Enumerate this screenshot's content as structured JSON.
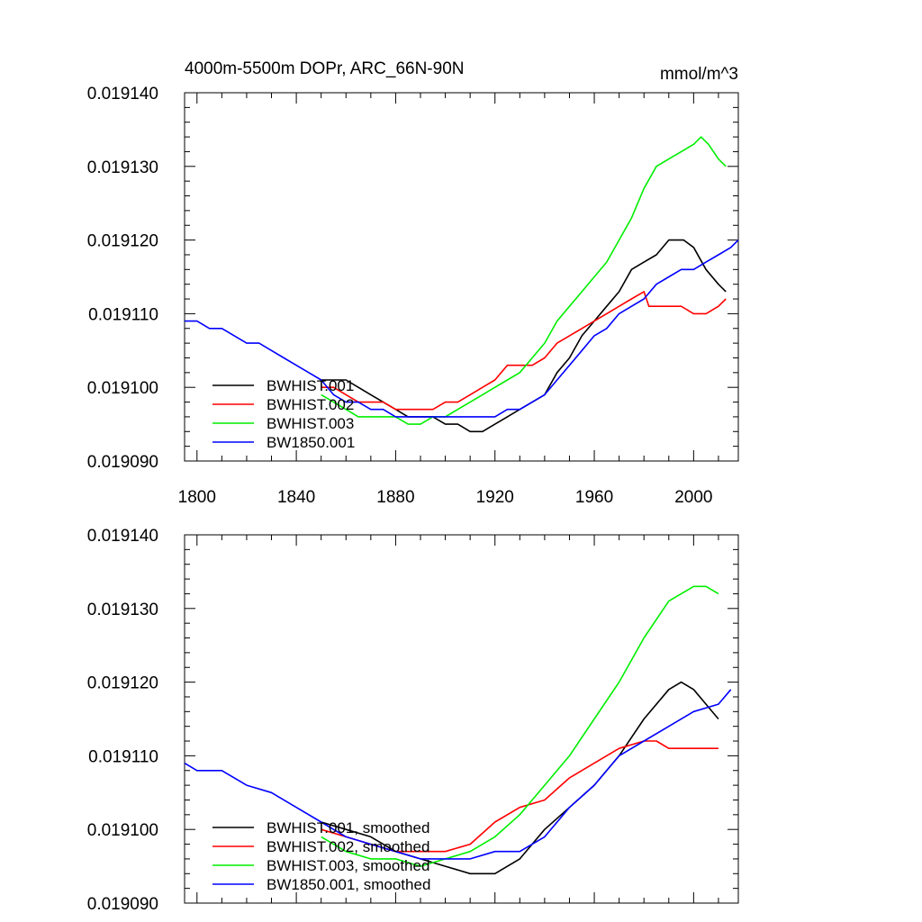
{
  "chart_data": [
    {
      "type": "line",
      "title": "4000m-5500m DOPr, ARC_66N-90N",
      "units": "mmol/m^3",
      "xlim": [
        1795,
        2018
      ],
      "ylim": [
        0.01909,
        0.01914
      ],
      "xticks": [
        1800,
        1840,
        1880,
        1920,
        1960,
        2000
      ],
      "yticks": [
        0.01909,
        0.0191,
        0.01911,
        0.01912,
        0.01913,
        0.01914
      ],
      "ytick_labels": [
        "0.019090",
        "0.019100",
        "0.019110",
        "0.019120",
        "0.019130",
        "0.019140"
      ],
      "grid": false,
      "legend": "bottom-left",
      "series": [
        {
          "name": "BWHIST.001",
          "color": "#000000",
          "x": [
            1850,
            1855,
            1860,
            1865,
            1870,
            1875,
            1880,
            1885,
            1890,
            1895,
            1900,
            1905,
            1910,
            1915,
            1920,
            1925,
            1930,
            1935,
            1940,
            1945,
            1950,
            1955,
            1960,
            1965,
            1970,
            1975,
            1980,
            1985,
            1990,
            1993,
            1996,
            2000,
            2005,
            2010,
            2013
          ],
          "y": [
            0.019101,
            0.019101,
            0.019101,
            0.0191,
            0.019099,
            0.019098,
            0.019097,
            0.019096,
            0.019096,
            0.019096,
            0.019095,
            0.019095,
            0.019094,
            0.019094,
            0.019095,
            0.019096,
            0.019097,
            0.019098,
            0.019099,
            0.019102,
            0.019104,
            0.019107,
            0.019109,
            0.019111,
            0.019113,
            0.019116,
            0.019117,
            0.019118,
            0.01912,
            0.01912,
            0.01912,
            0.019119,
            0.019116,
            0.019114,
            0.019113
          ]
        },
        {
          "name": "BWHIST.002",
          "color": "#ff0000",
          "x": [
            1850,
            1855,
            1860,
            1865,
            1870,
            1875,
            1880,
            1885,
            1890,
            1895,
            1900,
            1905,
            1910,
            1915,
            1920,
            1925,
            1930,
            1935,
            1940,
            1945,
            1950,
            1955,
            1960,
            1965,
            1970,
            1975,
            1980,
            1982,
            1985,
            1990,
            1995,
            2000,
            2005,
            2010,
            2013
          ],
          "y": [
            0.0191,
            0.0191,
            0.019099,
            0.019098,
            0.019098,
            0.019098,
            0.019097,
            0.019097,
            0.019097,
            0.019097,
            0.019098,
            0.019098,
            0.019099,
            0.0191,
            0.019101,
            0.019103,
            0.019103,
            0.019103,
            0.019104,
            0.019106,
            0.019107,
            0.019108,
            0.019109,
            0.01911,
            0.019111,
            0.019112,
            0.019113,
            0.019111,
            0.019111,
            0.019111,
            0.019111,
            0.01911,
            0.01911,
            0.019111,
            0.019112
          ]
        },
        {
          "name": "BWHIST.003",
          "color": "#00ee00",
          "x": [
            1850,
            1855,
            1860,
            1865,
            1870,
            1875,
            1880,
            1885,
            1890,
            1895,
            1900,
            1905,
            1910,
            1915,
            1920,
            1925,
            1930,
            1935,
            1940,
            1945,
            1950,
            1955,
            1960,
            1965,
            1970,
            1975,
            1980,
            1985,
            1990,
            1995,
            2000,
            2003,
            2006,
            2010,
            2013
          ],
          "y": [
            0.019099,
            0.019098,
            0.019097,
            0.019096,
            0.019096,
            0.019096,
            0.019096,
            0.019095,
            0.019095,
            0.019096,
            0.019096,
            0.019097,
            0.019098,
            0.019099,
            0.0191,
            0.019101,
            0.019102,
            0.019104,
            0.019106,
            0.019109,
            0.019111,
            0.019113,
            0.019115,
            0.019117,
            0.01912,
            0.019123,
            0.019127,
            0.01913,
            0.019131,
            0.019132,
            0.019133,
            0.019134,
            0.019133,
            0.019131,
            0.01913
          ]
        },
        {
          "name": "BW1850.001",
          "color": "#0000ff",
          "x": [
            1795,
            1800,
            1805,
            1810,
            1815,
            1820,
            1825,
            1830,
            1835,
            1840,
            1845,
            1850,
            1855,
            1860,
            1865,
            1870,
            1875,
            1880,
            1885,
            1890,
            1895,
            1900,
            1905,
            1910,
            1915,
            1920,
            1925,
            1930,
            1935,
            1940,
            1945,
            1950,
            1955,
            1960,
            1965,
            1970,
            1975,
            1980,
            1985,
            1990,
            1995,
            2000,
            2005,
            2010,
            2015,
            2018
          ],
          "y": [
            0.019109,
            0.019109,
            0.019108,
            0.019108,
            0.019107,
            0.019106,
            0.019106,
            0.019105,
            0.019104,
            0.019103,
            0.019102,
            0.019101,
            0.019099,
            0.019098,
            0.019098,
            0.019097,
            0.019097,
            0.019096,
            0.019096,
            0.019096,
            0.019096,
            0.019096,
            0.019096,
            0.019096,
            0.019096,
            0.019096,
            0.019097,
            0.019097,
            0.019098,
            0.019099,
            0.019101,
            0.019103,
            0.019105,
            0.019107,
            0.019108,
            0.01911,
            0.019111,
            0.019112,
            0.019114,
            0.019115,
            0.019116,
            0.019116,
            0.019117,
            0.019118,
            0.019119,
            0.01912
          ]
        }
      ]
    },
    {
      "type": "line",
      "xlim": [
        1795,
        2018
      ],
      "ylim": [
        0.01909,
        0.01914
      ],
      "xticks": [
        1800,
        1840,
        1880,
        1920,
        1960,
        2000
      ],
      "yticks": [
        0.01909,
        0.0191,
        0.01911,
        0.01912,
        0.01913,
        0.01914
      ],
      "ytick_labels": [
        "0.019090",
        "0.019100",
        "0.019110",
        "0.019120",
        "0.019130",
        "0.019140"
      ],
      "grid": false,
      "legend": "bottom-left",
      "series": [
        {
          "name": "BWHIST.001, smoothed",
          "color": "#000000",
          "x": [
            1850,
            1860,
            1870,
            1880,
            1890,
            1900,
            1910,
            1920,
            1930,
            1940,
            1950,
            1960,
            1970,
            1980,
            1990,
            1995,
            2000,
            2005,
            2010
          ],
          "y": [
            0.019101,
            0.0191,
            0.019099,
            0.019097,
            0.019096,
            0.019095,
            0.019094,
            0.019094,
            0.019096,
            0.0191,
            0.019103,
            0.019106,
            0.01911,
            0.019115,
            0.019119,
            0.01912,
            0.019119,
            0.019117,
            0.019115
          ]
        },
        {
          "name": "BWHIST.002, smoothed",
          "color": "#ff0000",
          "x": [
            1850,
            1860,
            1870,
            1880,
            1890,
            1900,
            1910,
            1920,
            1930,
            1940,
            1950,
            1960,
            1970,
            1980,
            1985,
            1990,
            1995,
            2000,
            2005,
            2010
          ],
          "y": [
            0.0191,
            0.019099,
            0.019098,
            0.019097,
            0.019097,
            0.019097,
            0.019098,
            0.019101,
            0.019103,
            0.019104,
            0.019107,
            0.019109,
            0.019111,
            0.019112,
            0.019112,
            0.019111,
            0.019111,
            0.019111,
            0.019111,
            0.019111
          ]
        },
        {
          "name": "BWHIST.003, smoothed",
          "color": "#00ee00",
          "x": [
            1850,
            1860,
            1870,
            1880,
            1890,
            1900,
            1910,
            1920,
            1930,
            1940,
            1950,
            1960,
            1970,
            1980,
            1990,
            2000,
            2005,
            2010
          ],
          "y": [
            0.019099,
            0.019097,
            0.019096,
            0.019096,
            0.019095,
            0.019096,
            0.019097,
            0.019099,
            0.019102,
            0.019106,
            0.01911,
            0.019115,
            0.01912,
            0.019126,
            0.019131,
            0.019133,
            0.019133,
            0.019132
          ]
        },
        {
          "name": "BW1850.001, smoothed",
          "color": "#0000ff",
          "x": [
            1795,
            1800,
            1810,
            1820,
            1830,
            1840,
            1850,
            1860,
            1870,
            1880,
            1890,
            1900,
            1910,
            1920,
            1930,
            1940,
            1950,
            1960,
            1970,
            1980,
            1990,
            2000,
            2010,
            2015
          ],
          "y": [
            0.019109,
            0.019108,
            0.019108,
            0.019106,
            0.019105,
            0.019103,
            0.019101,
            0.019099,
            0.019098,
            0.019097,
            0.019096,
            0.019096,
            0.019096,
            0.019097,
            0.019097,
            0.019099,
            0.019103,
            0.019106,
            0.01911,
            0.019112,
            0.019114,
            0.019116,
            0.019117,
            0.019119
          ]
        }
      ]
    }
  ]
}
